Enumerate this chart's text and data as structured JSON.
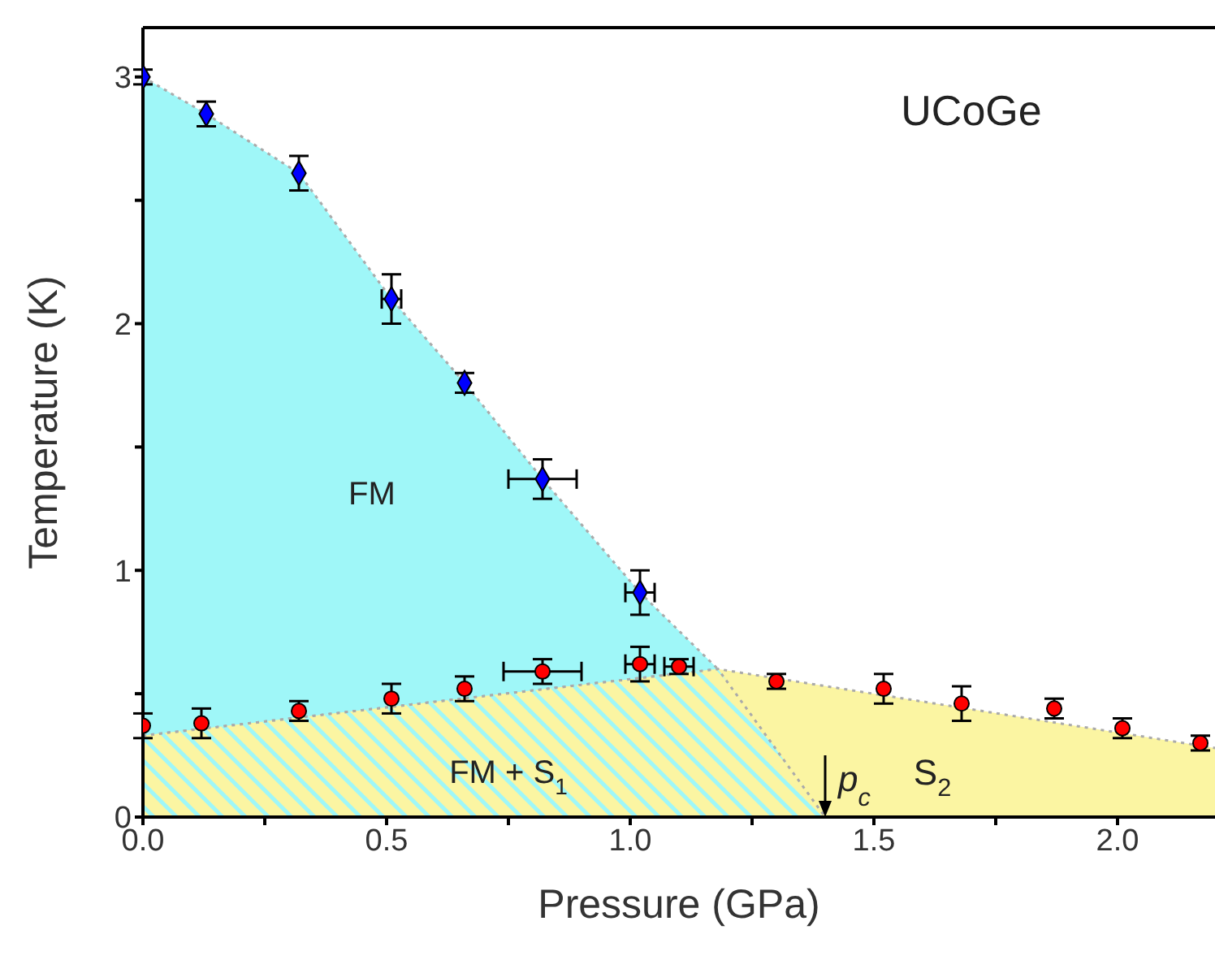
{
  "chart_data": {
    "type": "scatter",
    "xlabel": "Pressure (GPa)",
    "ylabel": "Temperature (K)",
    "xlim": [
      0,
      2.2
    ],
    "ylim": [
      0,
      3.2
    ],
    "xticks": [
      {
        "value": 0,
        "label": "0.0"
      },
      {
        "value": 0.25,
        "label": null
      },
      {
        "value": 0.5,
        "label": "0.5"
      },
      {
        "value": 0.75,
        "label": null
      },
      {
        "value": 1,
        "label": "1.0"
      },
      {
        "value": 1.25,
        "label": null
      },
      {
        "value": 1.5,
        "label": "1.5"
      },
      {
        "value": 1.75,
        "label": null
      },
      {
        "value": 2,
        "label": "2.0"
      }
    ],
    "yticks": [
      0,
      {
        "value": 0.5,
        "label": null
      },
      1,
      {
        "value": 1.5,
        "label": null
      },
      2,
      {
        "value": 2.5,
        "label": null
      },
      3
    ],
    "annotations": [
      "UCoGe",
      "FM",
      "FM + S$_{1}$",
      {
        "text": "p$_{c}$",
        "x": 1.4,
        "y": 0
      },
      "S$_{2}$"
    ],
    "series": [
      {
        "type": "area",
        "color": "#9ff7f8",
        "line_style": "dotted",
        "x": [
          0,
          0.13,
          0.32,
          0.51,
          0.66,
          0.82,
          1.02,
          1.18
        ],
        "values": [
          3.0,
          2.85,
          2.61,
          2.1,
          1.76,
          1.37,
          0.91,
          0.6
        ]
      },
      {
        "type": "area",
        "color": "#fbf5a2",
        "line_style": "dotted",
        "x": [
          0,
          1.18,
          2.2
        ],
        "values": [
          0.33,
          0.6,
          0.28
        ]
      },
      {
        "type": "area",
        "color": "#9ff7f8",
        "line_style": "dotted",
        "x": [
          0,
          1.18,
          1.4
        ],
        "values": [
          0.33,
          0.6,
          0
        ]
      },
      {
        "color": "#0000ff",
        "marker": "diamond",
        "x": [
          0,
          0.13,
          0.32,
          0.51,
          0.66,
          0.82,
          1.02
        ],
        "values": [
          3.0,
          2.85,
          2.61,
          2.1,
          1.76,
          1.37,
          0.91
        ],
        "errors": [
          0.03,
          0.05,
          0.07,
          0.1,
          0.04,
          0.08,
          0.09
        ],
        "xerrors": [
          null,
          null,
          null,
          0.02,
          null,
          0.07,
          0.03
        ]
      },
      {
        "color": "#ff0000",
        "marker": "circle",
        "x": [
          0,
          0.12,
          0.32,
          0.51,
          0.66,
          0.82,
          1.02,
          1.1,
          1.3,
          1.52,
          1.68,
          1.87,
          2.01,
          2.17
        ],
        "values": [
          0.37,
          0.38,
          0.43,
          0.48,
          0.52,
          0.59,
          0.62,
          0.61,
          0.55,
          0.52,
          0.46,
          0.44,
          0.36,
          0.3
        ],
        "errors": [
          0.05,
          0.06,
          0.04,
          0.06,
          0.05,
          0.05,
          0.07,
          0.03,
          0.03,
          0.06,
          0.07,
          0.04,
          0.04,
          0.03
        ],
        "xerrors": [
          null,
          null,
          null,
          null,
          null,
          0.08,
          0.03,
          0.03,
          null,
          null,
          null,
          null,
          null,
          null
        ]
      }
    ]
  }
}
